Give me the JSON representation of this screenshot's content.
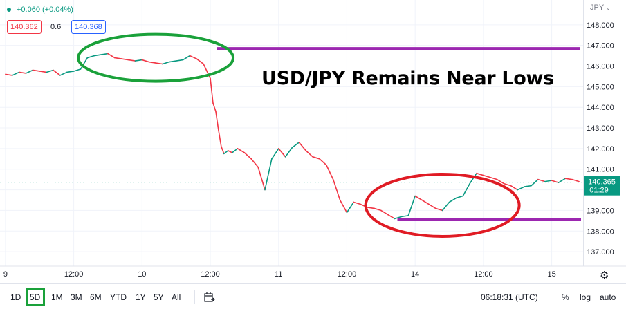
{
  "header": {
    "change": "+0.060 (+0.04%)",
    "bid": "140.362",
    "spread": "0.6",
    "ask": "140.368",
    "currency": "JPY"
  },
  "chart_data": {
    "type": "line",
    "title": "USD/JPY Remains Near Lows",
    "y_ticks": [
      137.0,
      138.0,
      139.0,
      140.0,
      141.0,
      142.0,
      143.0,
      144.0,
      145.0,
      146.0,
      147.0,
      148.0
    ],
    "y_tick_labels": [
      "137.000",
      "138.000",
      "139.000",
      "140.000",
      "141.000",
      "142.000",
      "143.000",
      "144.000",
      "145.000",
      "146.000",
      "147.000",
      "148.000"
    ],
    "ylim": [
      136.3,
      149.2
    ],
    "x_tick_labels": [
      "9",
      "12:00",
      "10",
      "12:00",
      "11",
      "12:00",
      "14",
      "12:00",
      "15"
    ],
    "x_ticks": [
      0.0,
      0.5,
      1.0,
      1.5,
      2.0,
      2.5,
      3.0,
      3.5,
      4.0
    ],
    "xlim": [
      -0.04,
      4.23
    ],
    "series": [
      {
        "x": [
          0.0,
          0.05,
          0.1,
          0.15,
          0.2,
          0.25,
          0.3,
          0.35,
          0.4,
          0.45,
          0.5,
          0.55,
          0.6,
          0.65,
          0.7,
          0.75,
          0.8,
          0.85,
          0.9,
          0.95,
          1.0,
          1.05,
          1.1,
          1.15,
          1.2,
          1.25,
          1.3,
          1.35,
          1.4,
          1.45,
          1.5,
          1.52,
          1.54,
          1.56,
          1.58,
          1.6,
          1.63,
          1.66,
          1.7,
          1.75,
          1.8,
          1.85,
          1.9,
          1.95,
          2.0,
          2.05,
          2.1,
          2.15,
          2.2,
          2.25,
          2.3,
          2.35,
          2.4,
          2.45,
          2.5,
          2.55,
          2.6,
          2.65,
          2.7,
          2.75,
          2.8,
          2.85,
          2.9,
          2.95,
          3.0,
          3.05,
          3.1,
          3.15,
          3.2,
          3.25,
          3.3,
          3.35,
          3.4,
          3.45,
          3.5,
          3.55,
          3.6,
          3.65,
          3.7,
          3.75,
          3.8,
          3.85,
          3.9,
          3.95,
          4.0,
          4.05,
          4.1,
          4.15,
          4.2
        ],
        "y": [
          145.6,
          145.55,
          145.7,
          145.65,
          145.8,
          145.75,
          145.7,
          145.8,
          145.55,
          145.7,
          145.75,
          145.85,
          146.4,
          146.5,
          146.55,
          146.6,
          146.4,
          146.35,
          146.3,
          146.25,
          146.3,
          146.2,
          146.15,
          146.1,
          146.2,
          146.25,
          146.3,
          146.5,
          146.35,
          146.1,
          145.4,
          144.2,
          143.8,
          142.9,
          142.1,
          141.75,
          141.9,
          141.8,
          142.0,
          141.8,
          141.5,
          141.1,
          140.0,
          141.5,
          142.0,
          141.6,
          142.05,
          142.3,
          141.9,
          141.6,
          141.5,
          141.2,
          140.5,
          139.5,
          138.9,
          139.4,
          139.3,
          139.15,
          139.1,
          139.0,
          138.8,
          138.6,
          138.7,
          138.75,
          139.7,
          139.5,
          139.3,
          139.1,
          139.0,
          139.4,
          139.6,
          139.7,
          140.3,
          140.8,
          140.7,
          140.6,
          140.5,
          140.3,
          140.2,
          140.0,
          140.15,
          140.2,
          140.5,
          140.4,
          140.45,
          140.35,
          140.55,
          140.5,
          140.4
        ]
      }
    ],
    "last_price": "140.365",
    "countdown": "01:29",
    "annotations": {
      "resistance_level": 146.85,
      "support_level": 138.55,
      "line_color": "#9c27b0",
      "top_ellipse_color": "#1aa13a",
      "bottom_ellipse_color": "#e01b24"
    }
  },
  "toolbar": {
    "timeframes": [
      "1D",
      "5D",
      "1M",
      "3M",
      "6M",
      "YTD",
      "1Y",
      "5Y",
      "All"
    ],
    "selected": "5D",
    "clock": "06:18:31 (UTC)",
    "percent": "%",
    "log": "log",
    "auto": "auto"
  },
  "icons": {
    "gear": "gear-icon",
    "calendar": "calendar-range-icon",
    "dot": "status-dot-icon",
    "chevron": "chevron-down-icon"
  }
}
